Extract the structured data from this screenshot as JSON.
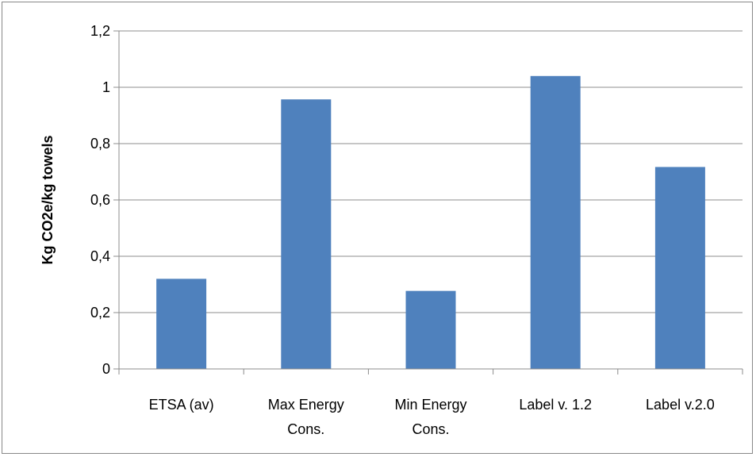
{
  "chart_data": {
    "type": "bar",
    "categories": [
      [
        "ETSA (av)"
      ],
      [
        "Max Energy",
        "Cons."
      ],
      [
        "Min Energy",
        "Cons."
      ],
      [
        "Label v. 1.2"
      ],
      [
        "Label v.2.0"
      ]
    ],
    "values": [
      0.32,
      0.957,
      0.277,
      1.04,
      0.717
    ],
    "ylabel": "Kg CO2e/kg towels",
    "ylim": [
      0,
      1.2
    ],
    "yticks": [
      "0",
      "0,2",
      "0,4",
      "0,6",
      "0,8",
      "1",
      "1,2"
    ],
    "ytick_values": [
      0,
      0.2,
      0.4,
      0.6,
      0.8,
      1.0,
      1.2
    ],
    "grid": true,
    "legend": "none",
    "bar_color": "#4F81BD",
    "grid_color": "#8C8C8C"
  }
}
